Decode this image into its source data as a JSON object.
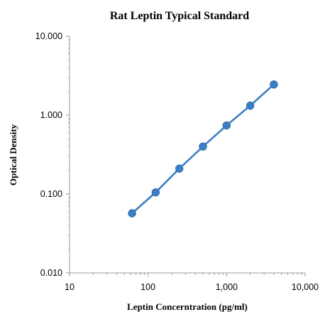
{
  "chart_data": {
    "type": "scatter",
    "title": "Rat Leptin Typical Standard",
    "xlabel": "Leptin Concerntration (pg/ml)",
    "ylabel": "Optical Density",
    "x_scale": "log",
    "y_scale": "log",
    "xlim": [
      10,
      10000
    ],
    "ylim": [
      0.01,
      10
    ],
    "x_ticks": [
      10,
      100,
      1000,
      10000
    ],
    "x_tick_labels": [
      "10",
      "100",
      "1,000",
      "10,000"
    ],
    "y_ticks": [
      0.01,
      0.1,
      1,
      10
    ],
    "y_tick_labels": [
      "0.010",
      "0.100",
      "1.000",
      "10.000"
    ],
    "grid": false,
    "series": [
      {
        "x": [
          62.5,
          125,
          250,
          500,
          1000,
          2000,
          4000
        ],
        "y": [
          0.057,
          0.105,
          0.21,
          0.4,
          0.74,
          1.32,
          2.45
        ],
        "marker": "circle",
        "color": "#3d7fc4",
        "line": true
      }
    ]
  }
}
